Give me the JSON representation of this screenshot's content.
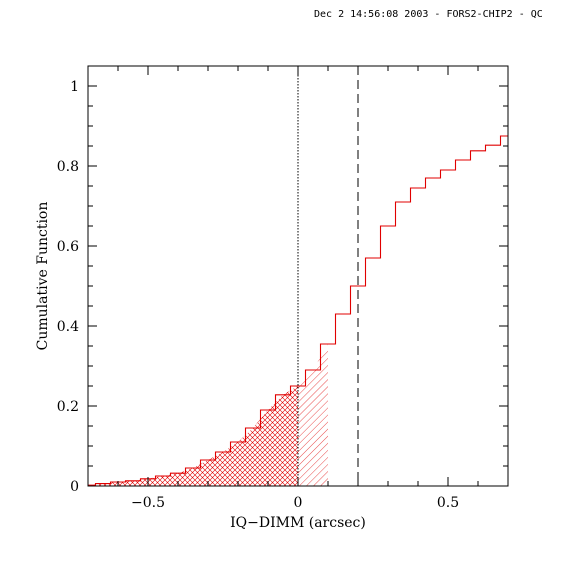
{
  "header": {
    "stamp": "Dec  2 14:56:08 2003 - FORS2-CHIP2 - QC"
  },
  "chart_data": {
    "type": "line",
    "title": "",
    "xlabel": "IQ−DIMM (arcsec)",
    "ylabel": "Cumulative Function",
    "xlim": [
      -0.7,
      0.7
    ],
    "ylim": [
      0,
      1.05
    ],
    "grid": false,
    "legend": "none",
    "line_color": "#e00000",
    "x_ticks": [
      {
        "value": -0.5,
        "label": "−0.5"
      },
      {
        "value": 0,
        "label": "0"
      },
      {
        "value": 0.5,
        "label": "0.5"
      }
    ],
    "y_ticks": [
      {
        "value": 0,
        "label": "0"
      },
      {
        "value": 0.2,
        "label": "0.2"
      },
      {
        "value": 0.4,
        "label": "0.4"
      },
      {
        "value": 0.6,
        "label": "0.6"
      },
      {
        "value": 0.8,
        "label": "0.8"
      },
      {
        "value": 1,
        "label": "1"
      }
    ],
    "reference_lines": [
      {
        "x": 0,
        "style": "dotted"
      },
      {
        "x": 0.2,
        "style": "dashed"
      }
    ],
    "shaded_regions": [
      {
        "from": -0.7,
        "to": 0,
        "pattern": "cross-hatch"
      },
      {
        "from": 0,
        "to": 0.1,
        "pattern": "diagonal-hatch"
      }
    ],
    "series": [
      {
        "x": [
          -0.7,
          -0.65,
          -0.6,
          -0.55,
          -0.5,
          -0.45,
          -0.4,
          -0.35,
          -0.3,
          -0.25,
          -0.2,
          -0.15,
          -0.1,
          -0.05,
          0,
          0.05,
          0.1,
          0.15,
          0.2,
          0.25,
          0.3,
          0.35,
          0.4,
          0.45,
          0.5,
          0.55,
          0.6,
          0.65,
          0.7
        ],
        "y": [
          0.002,
          0.006,
          0.01,
          0.013,
          0.018,
          0.025,
          0.032,
          0.045,
          0.065,
          0.085,
          0.11,
          0.145,
          0.19,
          0.228,
          0.25,
          0.29,
          0.355,
          0.43,
          0.5,
          0.57,
          0.65,
          0.71,
          0.745,
          0.77,
          0.79,
          0.815,
          0.838,
          0.852,
          0.875
        ]
      }
    ]
  }
}
